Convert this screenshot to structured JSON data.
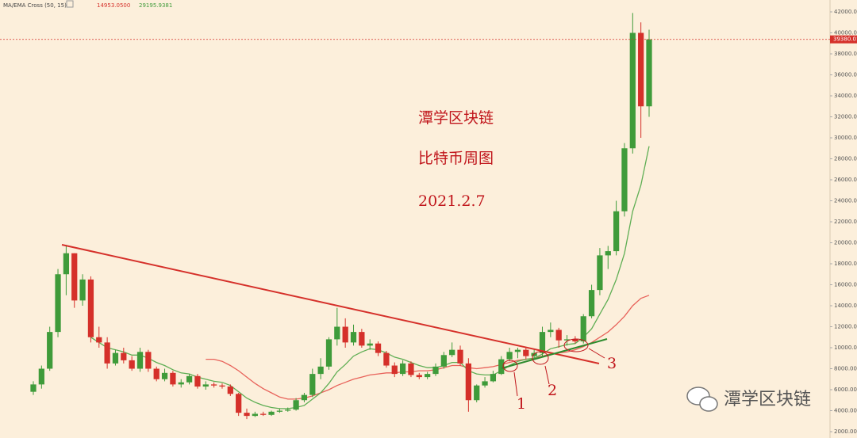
{
  "chart_data": {
    "type": "candlestick",
    "indicator": "MA/EMA Cross (50, 15)",
    "header_values": [
      "14953.0500",
      "29195.9381"
    ],
    "title": "潭学区块链",
    "subtitle": "比特币周图",
    "date": "2021.2.7",
    "annotations": [
      "1",
      "2",
      "3"
    ],
    "watermark": "潭学区块链",
    "last_price": 39380.01,
    "ylim": [
      2000,
      42000
    ],
    "yticks": [
      {
        "value": 2000,
        "label": "2000.00"
      },
      {
        "value": 4000,
        "label": "4000.00"
      },
      {
        "value": 6000,
        "label": "6000.00"
      },
      {
        "value": 8000,
        "label": "8000.00"
      },
      {
        "value": 10000,
        "label": "10000.00"
      },
      {
        "value": 12000,
        "label": "12000.00"
      },
      {
        "value": 14000,
        "label": "14000.00"
      },
      {
        "value": 16000,
        "label": "16000.00"
      },
      {
        "value": 18000,
        "label": "18000.00"
      },
      {
        "value": 20000,
        "label": "20000.00"
      },
      {
        "value": 22000,
        "label": "22000.00"
      },
      {
        "value": 24000,
        "label": "24000.00"
      },
      {
        "value": 26000,
        "label": "26000.00"
      },
      {
        "value": 28000,
        "label": "28000.00"
      },
      {
        "value": 30000,
        "label": "30000.00"
      },
      {
        "value": 32000,
        "label": "32000.00"
      },
      {
        "value": 34000,
        "label": "34000.00"
      },
      {
        "value": 36000,
        "label": "36000.00"
      },
      {
        "value": 38000,
        "label": "38000.00"
      },
      {
        "value": 40000,
        "label": "40000.00"
      },
      {
        "value": 42000,
        "label": "42000.00"
      }
    ],
    "up_color": "#3f9b3a",
    "down_color": "#d5302a",
    "open": [
      5800,
      6500,
      8000,
      11500,
      17000,
      19000,
      14500,
      16500,
      11000,
      10500,
      8500,
      9500,
      8800,
      8000,
      9600,
      8000,
      7000,
      7600,
      6500,
      6700,
      7300,
      6300,
      6500,
      6400,
      6300,
      5600,
      3800,
      3500,
      3700,
      3600,
      3900,
      4000,
      4100,
      5000,
      5500,
      7500,
      8200,
      10800,
      12000,
      10500,
      11500,
      10200,
      10400,
      9500,
      8300,
      7500,
      8500,
      7400,
      7200,
      7500,
      8200,
      9300,
      9800,
      8500,
      5000,
      6400,
      6800,
      7500,
      8900,
      9600,
      9800,
      9200,
      9500,
      11500,
      11700,
      10700,
      10800,
      10600,
      13000,
      15500,
      18800,
      19200,
      23000,
      29000,
      40000,
      33000
    ],
    "high": [
      6800,
      8300,
      12000,
      17500,
      19800,
      19000,
      17000,
      16800,
      12000,
      11000,
      9800,
      10000,
      9200,
      10000,
      9800,
      8200,
      8000,
      7800,
      7000,
      7500,
      7500,
      6800,
      6700,
      6600,
      6500,
      5700,
      4200,
      3900,
      3900,
      4000,
      4200,
      4300,
      5200,
      5700,
      8000,
      9000,
      11000,
      13800,
      12800,
      12200,
      11800,
      10800,
      10600,
      9700,
      8600,
      8800,
      8700,
      7600,
      7700,
      8500,
      9600,
      10500,
      10200,
      9000,
      6500,
      7200,
      7800,
      9200,
      10000,
      10000,
      10000,
      9800,
      12000,
      12400,
      11900,
      11200,
      11100,
      13200,
      16000,
      19500,
      19700,
      24000,
      29500,
      41900,
      41000,
      40300
    ],
    "low": [
      5500,
      6100,
      7800,
      11000,
      15000,
      13800,
      14000,
      10500,
      10000,
      8000,
      8300,
      8500,
      7800,
      7700,
      7700,
      6800,
      6800,
      6300,
      6200,
      6500,
      6100,
      6000,
      6200,
      6100,
      5400,
      3500,
      3200,
      3400,
      3500,
      3500,
      3800,
      3900,
      4000,
      4800,
      5300,
      7000,
      7900,
      10200,
      10000,
      10200,
      10000,
      9800,
      9200,
      8100,
      7200,
      7300,
      7200,
      7000,
      7000,
      7300,
      8000,
      9100,
      8300,
      3900,
      4800,
      6200,
      6700,
      7400,
      8700,
      9000,
      8900,
      9000,
      9200,
      11000,
      10000,
      10200,
      10400,
      10400,
      12800,
      15000,
      17500,
      18800,
      22500,
      28500,
      30000,
      32000
    ],
    "close": [
      6500,
      8000,
      11500,
      17000,
      19000,
      14500,
      16500,
      11000,
      10500,
      8500,
      9500,
      8800,
      8000,
      9600,
      8000,
      7000,
      7600,
      6500,
      6700,
      7300,
      6300,
      6500,
      6400,
      6300,
      5600,
      3800,
      3500,
      3700,
      3600,
      3900,
      4000,
      4100,
      5000,
      5500,
      7500,
      8200,
      10800,
      12000,
      10500,
      11500,
      10200,
      10400,
      9500,
      8300,
      7500,
      8500,
      7400,
      7200,
      7500,
      8200,
      9300,
      9800,
      8500,
      5000,
      6400,
      6800,
      7500,
      8900,
      9600,
      9800,
      9200,
      9500,
      11500,
      11700,
      10700,
      10800,
      10600,
      13000,
      15500,
      18800,
      19200,
      23000,
      29000,
      40000,
      33000,
      39380
    ],
    "series": [
      {
        "name": "MA",
        "color": "#e8625a",
        "values": [
          null,
          null,
          null,
          null,
          null,
          null,
          null,
          null,
          null,
          null,
          null,
          null,
          null,
          null,
          null,
          null,
          null,
          null,
          null,
          null,
          null,
          8900,
          8900,
          8700,
          8300,
          7800,
          7200,
          6600,
          6100,
          5700,
          5300,
          5100,
          5100,
          5200,
          5400,
          5700,
          6000,
          6400,
          6700,
          7000,
          7200,
          7400,
          7500,
          7600,
          7600,
          7700,
          7700,
          7800,
          7800,
          7900,
          8100,
          8300,
          8300,
          8100,
          8000,
          8100,
          8200,
          8400,
          8600,
          8800,
          8900,
          9000,
          9200,
          9400,
          9500,
          9600,
          9800,
          10100,
          10500,
          11000,
          11500,
          12200,
          13000,
          14000,
          14700,
          15000
        ]
      },
      {
        "name": "EMA",
        "color": "#5fae54",
        "values": [
          null,
          null,
          null,
          null,
          null,
          null,
          null,
          11000,
          10500,
          10000,
          9800,
          9600,
          9300,
          9300,
          9000,
          8600,
          8300,
          7900,
          7600,
          7500,
          7200,
          7000,
          6800,
          6700,
          6400,
          5800,
          5200,
          4800,
          4500,
          4300,
          4200,
          4200,
          4300,
          4500,
          5100,
          5700,
          6600,
          7700,
          8400,
          9200,
          9600,
          9900,
          9800,
          9500,
          9100,
          8900,
          8600,
          8300,
          8100,
          8100,
          8300,
          8600,
          8600,
          7800,
          7500,
          7400,
          7400,
          7800,
          8300,
          8700,
          8900,
          9000,
          9400,
          9900,
          10100,
          10300,
          10400,
          11000,
          11800,
          13200,
          14600,
          16500,
          19000,
          23000,
          25500,
          29200
        ]
      }
    ]
  }
}
